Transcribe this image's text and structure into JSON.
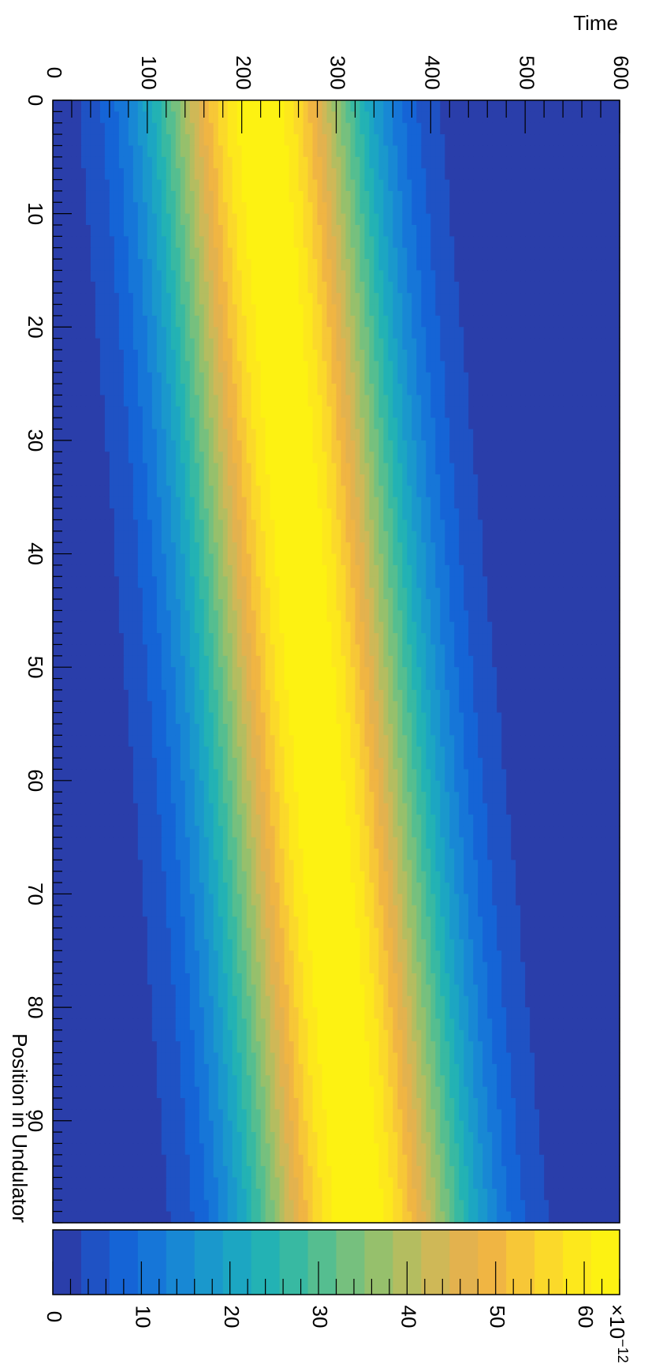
{
  "chart_data": {
    "type": "heatmap",
    "orientation": "rotated-90-clockwise",
    "x_axis": {
      "label": "Position in Undulator",
      "range": [
        0,
        99
      ],
      "ticks": [
        0,
        10,
        20,
        30,
        40,
        50,
        60,
        70,
        80,
        90
      ]
    },
    "y_axis": {
      "label": "Time",
      "range": [
        0,
        600
      ],
      "ticks": [
        0,
        100,
        200,
        300,
        400,
        500,
        600
      ]
    },
    "z_axis": {
      "range": [
        0,
        64
      ],
      "ticks": [
        0,
        10,
        20,
        30,
        40,
        50,
        60
      ],
      "exponent_label": "×10",
      "exponent_power": "−12"
    },
    "contour_levels": 20,
    "palette": [
      "#2a3eaa",
      "#1f52c4",
      "#1564d6",
      "#1676d8",
      "#1888d4",
      "#1a98cc",
      "#1ca6c2",
      "#23b2b4",
      "#38b9a2",
      "#55be90",
      "#76c07e",
      "#96c06c",
      "#b4bd60",
      "#cfb857",
      "#e3b24e",
      "#f0b543",
      "#f7c737",
      "#fbd92a",
      "#fde81c",
      "#fdf212"
    ],
    "band": {
      "description_values": "Gaussian intensity ridge; center time and width at positions",
      "position": [
        0,
        99
      ],
      "center_time": [
        218,
        324
      ],
      "sigma_time": [
        78,
        82
      ],
      "peak": 64
    }
  }
}
